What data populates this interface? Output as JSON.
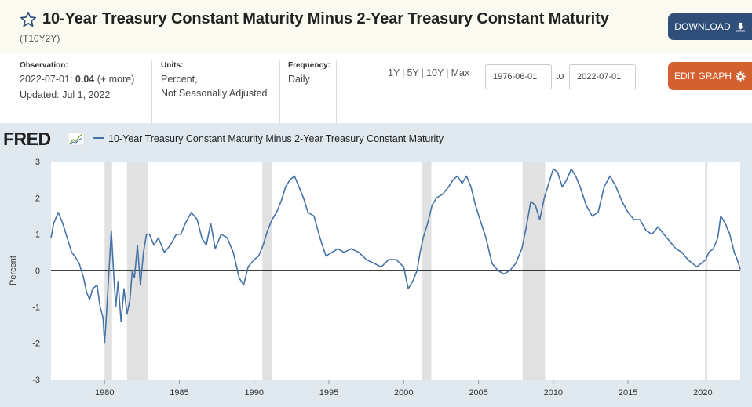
{
  "header": {
    "title": "10-Year Treasury Constant Maturity Minus 2-Year Treasury Constant Maturity",
    "series_id": "(T10Y2Y)",
    "download_label": "DOWNLOAD",
    "icons": {
      "favorite": "star-outline-icon",
      "download": "download-icon"
    }
  },
  "info": {
    "observation_label": "Observation:",
    "observation_date": "2022-07-01:",
    "observation_value": "0.04",
    "observation_more": "(+ more)",
    "updated": "Updated: Jul 1, 2022",
    "units_label": "Units:",
    "units_line1": "Percent,",
    "units_line2": "Not Seasonally Adjusted",
    "frequency_label": "Frequency:",
    "frequency_value": "Daily",
    "range_options": [
      "1Y",
      "5Y",
      "10Y",
      "Max"
    ],
    "date_start": "1976-06-01",
    "date_to": "to",
    "date_end": "2022-07-01",
    "edit_label": "EDIT GRAPH",
    "edit_icon": "gear-icon"
  },
  "chart_data": {
    "type": "line",
    "logo": "FRED",
    "legend_label": "10-Year Treasury Constant Maturity Minus 2-Year Treasury Constant Maturity",
    "ylabel": "Percent",
    "ylim": [
      -3,
      3
    ],
    "xlim": [
      1976.42,
      2022.5
    ],
    "yticks": [
      3,
      2,
      1,
      0,
      -1,
      -2,
      -3
    ],
    "xticks": [
      1980,
      1985,
      1990,
      1995,
      2000,
      2005,
      2010,
      2015,
      2020
    ],
    "line_color": "#4572a7",
    "recession_color": "#e1e1e1",
    "recessions": [
      [
        1980.0,
        1980.5
      ],
      [
        1981.5,
        1982.9
      ],
      [
        1990.55,
        1991.2
      ],
      [
        2001.2,
        2001.85
      ],
      [
        2007.95,
        2009.45
      ],
      [
        2020.15,
        2020.3
      ]
    ],
    "zero_line": true,
    "grid": false,
    "series": [
      {
        "name": "10-Year Treasury Constant Maturity Minus 2-Year Treasury Constant Maturity",
        "x": [
          1976.42,
          1976.6,
          1976.9,
          1977.2,
          1977.5,
          1977.8,
          1978.0,
          1978.3,
          1978.6,
          1978.8,
          1979.0,
          1979.2,
          1979.5,
          1979.7,
          1979.9,
          1980.0,
          1980.1,
          1980.3,
          1980.45,
          1980.6,
          1980.75,
          1980.9,
          1981.1,
          1981.3,
          1981.5,
          1981.7,
          1981.85,
          1982.0,
          1982.2,
          1982.4,
          1982.6,
          1982.8,
          1983.0,
          1983.3,
          1983.6,
          1984.0,
          1984.4,
          1984.8,
          1985.1,
          1985.4,
          1985.8,
          1986.2,
          1986.5,
          1986.8,
          1987.1,
          1987.4,
          1987.8,
          1988.2,
          1988.6,
          1989.0,
          1989.3,
          1989.6,
          1990.0,
          1990.3,
          1990.6,
          1990.9,
          1991.2,
          1991.5,
          1991.8,
          1992.1,
          1992.4,
          1992.7,
          1993.0,
          1993.3,
          1993.6,
          1994.0,
          1994.4,
          1994.8,
          1995.2,
          1995.6,
          1996.0,
          1996.5,
          1997.0,
          1997.5,
          1998.0,
          1998.5,
          1999.0,
          1999.5,
          2000.0,
          2000.3,
          2000.6,
          2000.9,
          2001.1,
          2001.3,
          2001.6,
          2001.9,
          2002.2,
          2002.6,
          2003.0,
          2003.3,
          2003.6,
          2003.9,
          2004.2,
          2004.5,
          2004.8,
          2005.1,
          2005.5,
          2005.9,
          2006.3,
          2006.7,
          2007.1,
          2007.5,
          2007.9,
          2008.2,
          2008.5,
          2008.8,
          2009.1,
          2009.4,
          2009.7,
          2010.0,
          2010.3,
          2010.6,
          2010.9,
          2011.2,
          2011.5,
          2011.8,
          2012.2,
          2012.6,
          2013.0,
          2013.4,
          2013.8,
          2014.2,
          2014.6,
          2015.0,
          2015.4,
          2015.8,
          2016.2,
          2016.6,
          2017.0,
          2017.4,
          2017.8,
          2018.2,
          2018.6,
          2019.0,
          2019.3,
          2019.6,
          2019.9,
          2020.2,
          2020.4,
          2020.7,
          2021.0,
          2021.2,
          2021.5,
          2021.8,
          2022.1,
          2022.3,
          2022.5
        ],
        "y": [
          0.9,
          1.3,
          1.6,
          1.3,
          0.9,
          0.5,
          0.4,
          0.2,
          -0.2,
          -0.6,
          -0.8,
          -0.5,
          -0.4,
          -1.0,
          -1.3,
          -2.0,
          -1.4,
          0.0,
          1.1,
          0.0,
          -1.0,
          -0.3,
          -1.4,
          -0.5,
          -1.2,
          -0.8,
          0.0,
          -0.2,
          0.7,
          -0.4,
          0.5,
          1.0,
          1.0,
          0.7,
          0.9,
          0.5,
          0.7,
          1.0,
          1.0,
          1.3,
          1.6,
          1.4,
          0.9,
          0.7,
          1.3,
          0.6,
          1.0,
          0.9,
          0.5,
          -0.2,
          -0.4,
          0.1,
          0.3,
          0.4,
          0.7,
          1.1,
          1.4,
          1.6,
          1.9,
          2.3,
          2.5,
          2.6,
          2.3,
          2.0,
          1.6,
          1.5,
          0.9,
          0.4,
          0.5,
          0.6,
          0.5,
          0.6,
          0.5,
          0.3,
          0.2,
          0.1,
          0.3,
          0.3,
          0.1,
          -0.5,
          -0.3,
          0.0,
          0.5,
          0.9,
          1.3,
          1.8,
          2.0,
          2.1,
          2.3,
          2.5,
          2.6,
          2.4,
          2.6,
          2.3,
          1.8,
          1.4,
          0.9,
          0.2,
          0.0,
          -0.1,
          0.0,
          0.2,
          0.6,
          1.2,
          1.9,
          1.8,
          1.4,
          2.0,
          2.4,
          2.8,
          2.7,
          2.3,
          2.5,
          2.8,
          2.6,
          2.3,
          1.8,
          1.5,
          1.6,
          2.3,
          2.6,
          2.3,
          1.9,
          1.6,
          1.4,
          1.4,
          1.1,
          1.0,
          1.2,
          1.0,
          0.8,
          0.6,
          0.5,
          0.3,
          0.2,
          0.1,
          0.2,
          0.3,
          0.5,
          0.6,
          0.9,
          1.5,
          1.3,
          1.0,
          0.5,
          0.3,
          0.04
        ]
      }
    ]
  }
}
